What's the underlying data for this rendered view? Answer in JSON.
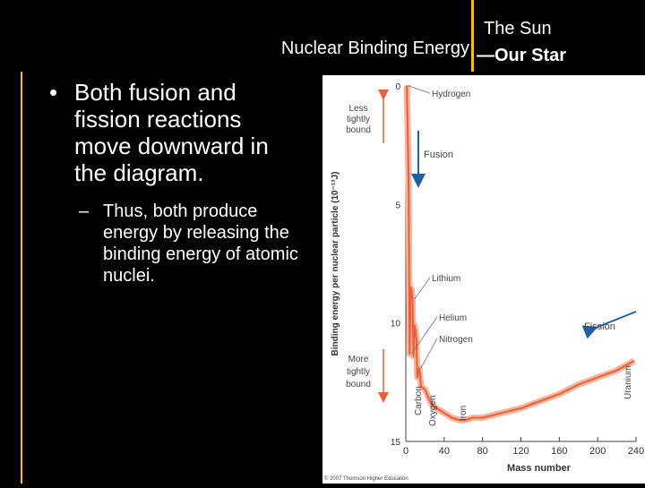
{
  "header": {
    "title": "Nuclear Binding Energy",
    "section_line1": "The Sun",
    "section_line2": "—Our Star"
  },
  "bullets": {
    "main": "Both fusion and fission reactions move downward in the diagram.",
    "sub": "Thus, both produce energy by releasing the binding energy of atomic nuclei.",
    "main_marker": "•",
    "sub_marker": "–"
  },
  "colors": {
    "accent": "#ffc000",
    "curve": "#e8603a",
    "curve_glow": "#f6b59c",
    "arrow": "#1f5fa8"
  },
  "chart_data": {
    "type": "line",
    "xlabel": "Mass number",
    "ylabel": "Binding energy per nuclear particle (10⁻¹³J)",
    "xlim": [
      0,
      240
    ],
    "ylim": [
      0,
      15
    ],
    "y_inverted": true,
    "x_ticks": [
      "0",
      "40",
      "80",
      "120",
      "160",
      "200",
      "240"
    ],
    "y_ticks": [
      "0",
      "5",
      "10",
      "15"
    ],
    "grid": false,
    "series": [
      {
        "x": [
          1,
          2,
          3,
          4,
          5,
          6,
          7,
          8,
          9,
          10,
          11,
          12,
          14,
          16,
          20,
          24,
          28,
          32,
          40,
          48,
          56,
          62,
          70,
          80,
          90,
          100,
          120,
          140,
          160,
          180,
          200,
          220,
          238
        ],
        "y": [
          0,
          1.8,
          4.5,
          11.3,
          8.5,
          8.6,
          9.0,
          11.4,
          10.1,
          10.3,
          10.7,
          12.3,
          11.9,
          12.7,
          12.8,
          13.2,
          13.5,
          13.6,
          13.8,
          14.0,
          14.1,
          14.1,
          14.0,
          14.0,
          13.9,
          13.8,
          13.6,
          13.3,
          13.0,
          12.6,
          12.3,
          12.0,
          11.6
        ]
      }
    ],
    "labels": [
      "Hydrogen",
      "Lithium",
      "Helium",
      "Nitrogen",
      "Carbon",
      "Oxygen",
      "Iron",
      "Uranium"
    ],
    "annotations": {
      "top_bracket": "Less tightly bound",
      "bottom_bracket": "More tightly bound",
      "fusion": "Fusion",
      "fission": "Fission"
    },
    "credit": "© 2007 Thomson Higher Education"
  }
}
